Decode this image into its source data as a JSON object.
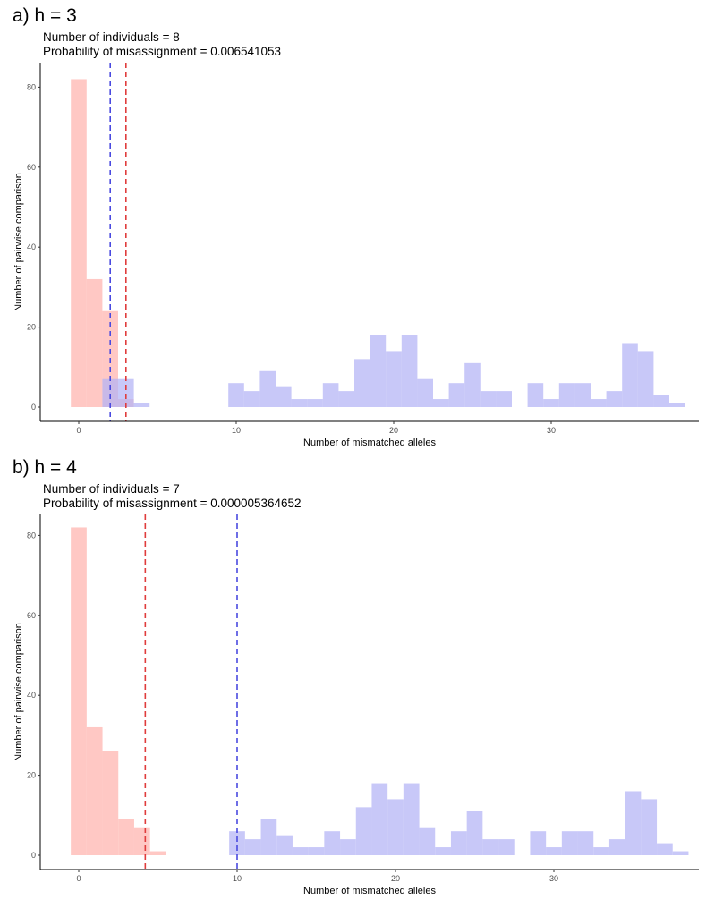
{
  "panels": [
    {
      "label": "a) h = 3",
      "info_line1": "Number of individuals =  8",
      "info_line2": "Probability of misassignment = 0.006541053"
    },
    {
      "label": "b) h = 4",
      "info_line1": "Number of individuals =  7",
      "info_line2": "Probability of misassignment = 0.000005364652"
    }
  ],
  "chart_data": [
    {
      "type": "histogram",
      "title": "a) h = 3",
      "xlabel": "Number of mismatched alleles",
      "ylabel": "Number of pairwise comparison",
      "xlim": [
        -2.5,
        38.5
      ],
      "ylim": [
        0,
        85
      ],
      "xticks": [
        0,
        10,
        20,
        30
      ],
      "yticks": [
        0,
        20,
        40,
        60,
        80
      ],
      "bin_width": 1,
      "series": [
        {
          "color": "#ffb3ad",
          "bins": [
            {
              "x": 0,
              "y": 82
            },
            {
              "x": 1,
              "y": 32
            },
            {
              "x": 2,
              "y": 24
            },
            {
              "x": 3,
              "y": 2
            }
          ]
        },
        {
          "color": "#b3b3f5",
          "bins": [
            {
              "x": 2,
              "y": 7
            },
            {
              "x": 3,
              "y": 7
            },
            {
              "x": 4,
              "y": 1
            },
            {
              "x": 10,
              "y": 6
            },
            {
              "x": 11,
              "y": 4
            },
            {
              "x": 12,
              "y": 9
            },
            {
              "x": 13,
              "y": 5
            },
            {
              "x": 14,
              "y": 2
            },
            {
              "x": 15,
              "y": 2
            },
            {
              "x": 16,
              "y": 6
            },
            {
              "x": 17,
              "y": 4
            },
            {
              "x": 18,
              "y": 12
            },
            {
              "x": 19,
              "y": 18
            },
            {
              "x": 20,
              "y": 14
            },
            {
              "x": 21,
              "y": 18
            },
            {
              "x": 22,
              "y": 7
            },
            {
              "x": 23,
              "y": 2
            },
            {
              "x": 24,
              "y": 6
            },
            {
              "x": 25,
              "y": 11
            },
            {
              "x": 26,
              "y": 4
            },
            {
              "x": 27,
              "y": 4
            },
            {
              "x": 29,
              "y": 6
            },
            {
              "x": 30,
              "y": 2
            },
            {
              "x": 31,
              "y": 6
            },
            {
              "x": 32,
              "y": 6
            },
            {
              "x": 33,
              "y": 2
            },
            {
              "x": 34,
              "y": 4
            },
            {
              "x": 35,
              "y": 16
            },
            {
              "x": 36,
              "y": 14
            },
            {
              "x": 37,
              "y": 3
            },
            {
              "x": 38,
              "y": 1
            }
          ]
        }
      ],
      "vlines": [
        {
          "x": 2,
          "color": "#4a4ae0"
        },
        {
          "x": 3,
          "color": "#e03c3c"
        }
      ],
      "grid": false
    },
    {
      "type": "histogram",
      "title": "b) h = 4",
      "xlabel": "Number of mismatched alleles",
      "ylabel": "Number of pairwise comparison",
      "xlim": [
        -2.5,
        38.5
      ],
      "ylim": [
        0,
        85
      ],
      "xticks": [
        0,
        10,
        20,
        30
      ],
      "yticks": [
        0,
        20,
        40,
        60,
        80
      ],
      "bin_width": 1,
      "series": [
        {
          "color": "#ffb3ad",
          "bins": [
            {
              "x": 0,
              "y": 82
            },
            {
              "x": 1,
              "y": 32
            },
            {
              "x": 2,
              "y": 26
            },
            {
              "x": 3,
              "y": 9
            },
            {
              "x": 4,
              "y": 7
            },
            {
              "x": 5,
              "y": 1
            }
          ]
        },
        {
          "color": "#b3b3f5",
          "bins": [
            {
              "x": 10,
              "y": 6
            },
            {
              "x": 11,
              "y": 4
            },
            {
              "x": 12,
              "y": 9
            },
            {
              "x": 13,
              "y": 5
            },
            {
              "x": 14,
              "y": 2
            },
            {
              "x": 15,
              "y": 2
            },
            {
              "x": 16,
              "y": 6
            },
            {
              "x": 17,
              "y": 4
            },
            {
              "x": 18,
              "y": 12
            },
            {
              "x": 19,
              "y": 18
            },
            {
              "x": 20,
              "y": 14
            },
            {
              "x": 21,
              "y": 18
            },
            {
              "x": 22,
              "y": 7
            },
            {
              "x": 23,
              "y": 2
            },
            {
              "x": 24,
              "y": 6
            },
            {
              "x": 25,
              "y": 11
            },
            {
              "x": 26,
              "y": 4
            },
            {
              "x": 27,
              "y": 4
            },
            {
              "x": 29,
              "y": 6
            },
            {
              "x": 30,
              "y": 2
            },
            {
              "x": 31,
              "y": 6
            },
            {
              "x": 32,
              "y": 6
            },
            {
              "x": 33,
              "y": 2
            },
            {
              "x": 34,
              "y": 4
            },
            {
              "x": 35,
              "y": 16
            },
            {
              "x": 36,
              "y": 14
            },
            {
              "x": 37,
              "y": 3
            },
            {
              "x": 38,
              "y": 1
            }
          ]
        }
      ],
      "vlines": [
        {
          "x": 4.2,
          "color": "#e03c3c"
        },
        {
          "x": 10,
          "color": "#4a4ae0"
        }
      ],
      "grid": false
    }
  ]
}
